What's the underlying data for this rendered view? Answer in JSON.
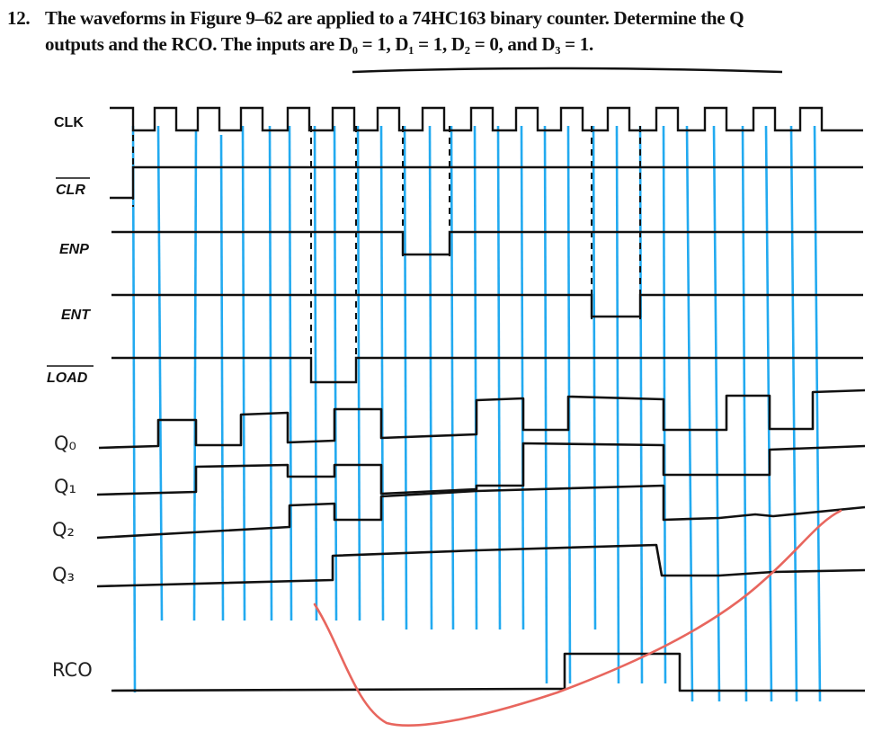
{
  "problem": {
    "number": "12.",
    "line1": "The waveforms in Figure 9–62 are applied to a 74HC163 binary counter. Determine the Q",
    "line2": "outputs and the RCO. The inputs are D₀ = 1, D₁ = 1, D₂ = 0, and D₃ = 1."
  },
  "signals": {
    "clk": "CLK",
    "clr": "CLR",
    "enp": "ENP",
    "ent": "ENT",
    "load": "LOAD"
  },
  "handwritten": {
    "q0": "Q₀",
    "q1": "Q₁",
    "q2": "Q₂",
    "q3": "Q₃",
    "rco": "RCO"
  },
  "colors": {
    "ink": "#111111",
    "guide_lines": "#22aaf0",
    "annotation": "#e8665e"
  },
  "waveforms": {
    "q0": [
      0,
      1,
      0,
      1,
      0,
      1,
      0,
      1,
      0,
      1,
      1,
      0,
      1,
      0,
      1
    ],
    "q1": [
      0,
      0,
      1,
      1,
      0,
      0,
      1,
      1,
      1,
      1,
      1,
      0,
      0,
      0,
      0
    ],
    "q2": [
      0,
      0,
      0,
      0,
      1,
      1,
      1,
      1,
      1,
      1,
      1,
      0,
      0,
      0,
      0
    ],
    "q3": [
      0,
      0,
      0,
      0,
      1,
      1,
      1,
      1,
      1,
      1,
      1,
      0,
      0,
      0,
      0
    ],
    "rco": [
      0,
      0,
      0,
      0,
      0,
      0,
      0,
      0,
      0,
      1,
      1,
      0,
      0,
      0,
      0
    ]
  }
}
